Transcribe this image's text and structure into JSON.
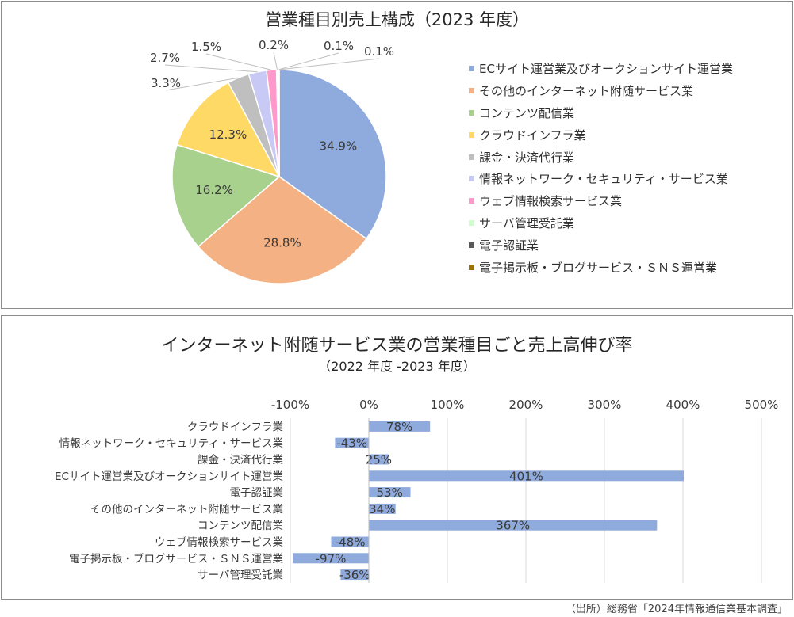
{
  "chart_data": [
    {
      "type": "pie",
      "title": "営業種目別売上構成（2023 年度）",
      "slices": [
        {
          "label": "ECサイト運営業及びオークションサイト運営業",
          "value": 34.9,
          "display": "34.9%",
          "color": "#8faadc"
        },
        {
          "label": "その他のインターネット附随サービス業",
          "value": 28.8,
          "display": "28.8%",
          "color": "#f4b183"
        },
        {
          "label": "コンテンツ配信業",
          "value": 16.2,
          "display": "16.2%",
          "color": "#a9d18e"
        },
        {
          "label": "クラウドインフラ業",
          "value": 12.3,
          "display": "12.3%",
          "color": "#ffd966"
        },
        {
          "label": "課金・決済代行業",
          "value": 3.3,
          "display": "3.3%",
          "color": "#bfbfbf"
        },
        {
          "label": "情報ネットワーク・セキュリティ・サービス業",
          "value": 2.7,
          "display": "2.7%",
          "color": "#c9c9f5"
        },
        {
          "label": "ウェブ情報検索サービス業",
          "value": 1.5,
          "display": "1.5%",
          "color": "#ff99cc"
        },
        {
          "label": "サーバ管理受託業",
          "value": 0.2,
          "display": "0.2%",
          "color": "#ccffcc"
        },
        {
          "label": "電子認証業",
          "value": 0.1,
          "display": "0.1%",
          "color": "#595959"
        },
        {
          "label": "電子掲示板・ブログサービス・ＳＮＳ運営業",
          "value": 0.1,
          "display": "0.1%",
          "color": "#997300"
        }
      ],
      "legend": "right"
    },
    {
      "type": "bar",
      "orientation": "horizontal",
      "title": "インターネット附随サービス業の営業種目ごと売上高伸び率",
      "subtitle": "（2022 年度 -2023 年度）",
      "categories": [
        "クラウドインフラ業",
        "情報ネットワーク・セキュリティ・サービス業",
        "課金・決済代行業",
        "ECサイト運営業及びオークションサイト運営業",
        "電子認証業",
        "その他のインターネット附随サービス業",
        "コンテンツ配信業",
        "ウェブ情報検索サービス業",
        "電子掲示板・ブログサービス・ＳＮＳ運営業",
        "サーバ管理受託業"
      ],
      "values": [
        78,
        -43,
        25,
        401,
        53,
        34,
        367,
        -48,
        -97,
        -36
      ],
      "value_labels": [
        "78%",
        "-43%",
        "25%",
        "401%",
        "53%",
        "34%",
        "367%",
        "-48%",
        "-97%",
        "-36%"
      ],
      "xlim": [
        -100,
        500
      ],
      "ticks": [
        -100,
        0,
        100,
        200,
        300,
        400,
        500
      ],
      "tick_labels": [
        "-100%",
        "0%",
        "100%",
        "200%",
        "300%",
        "400%",
        "500%"
      ],
      "bar_color": "#8faadc",
      "grid": true
    }
  ],
  "source": "（出所）総務省「2024年情報通信業基本調査」"
}
